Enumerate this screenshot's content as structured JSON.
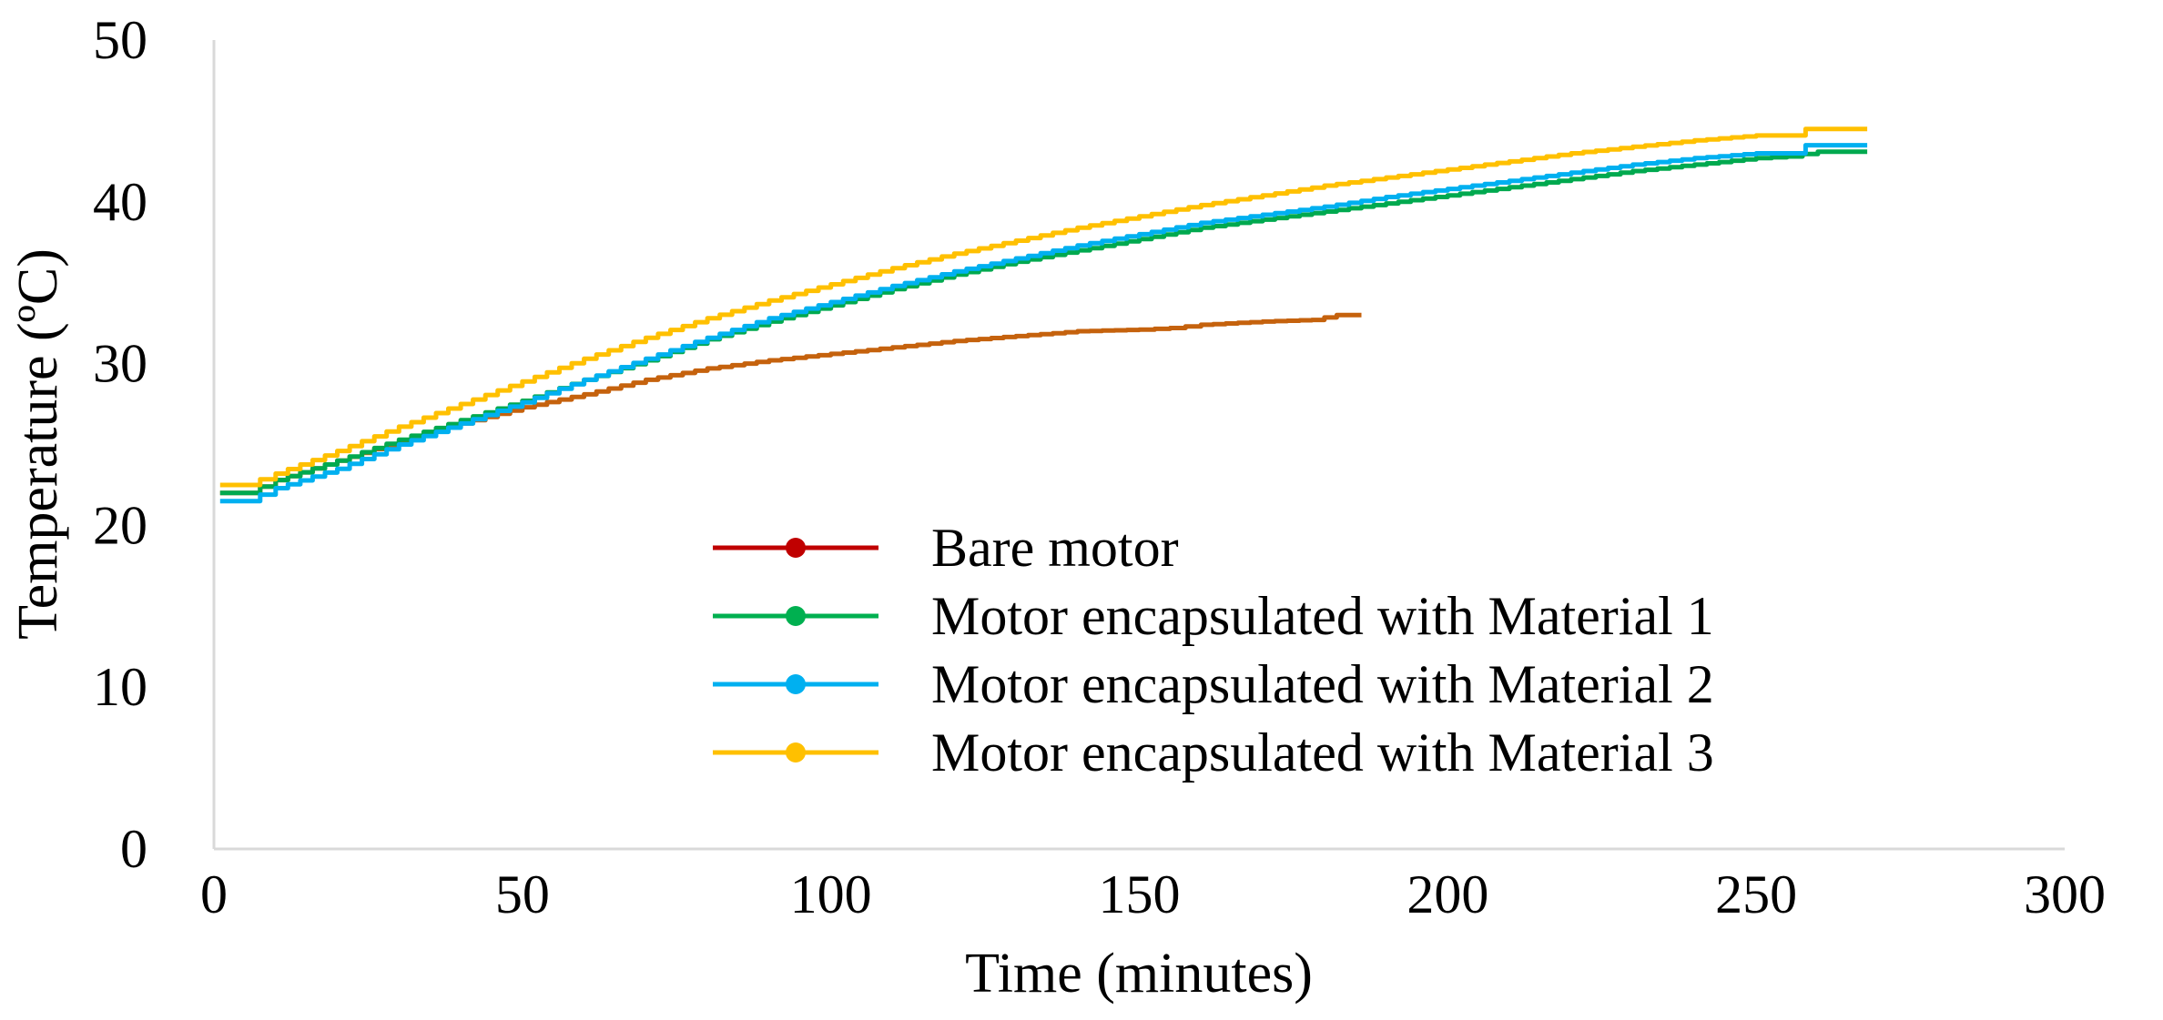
{
  "chart_data": {
    "type": "line",
    "title": "",
    "xlabel": "Time (minutes)",
    "ylabel": "Temperature (ºC)",
    "xlim": [
      0,
      300
    ],
    "ylim": [
      0,
      50
    ],
    "xticks": [
      0,
      50,
      100,
      150,
      200,
      250,
      300
    ],
    "yticks": [
      0,
      10,
      20,
      30,
      40,
      50
    ],
    "grid": false,
    "legend_position": "center-bottom",
    "series": [
      {
        "name": "Bare motor",
        "color": "#c5620d",
        "legend_color": "#c00000",
        "points": [
          [
            1,
            22
          ],
          [
            5,
            22
          ],
          [
            10,
            22.8
          ],
          [
            20,
            24
          ],
          [
            30,
            25.2
          ],
          [
            40,
            26.3
          ],
          [
            50,
            27.3
          ],
          [
            60,
            28.1
          ],
          [
            70,
            29
          ],
          [
            80,
            29.7
          ],
          [
            90,
            30.2
          ],
          [
            100,
            30.6
          ],
          [
            110,
            31
          ],
          [
            120,
            31.4
          ],
          [
            130,
            31.7
          ],
          [
            140,
            32
          ],
          [
            150,
            32.1
          ],
          [
            155,
            32.2
          ],
          [
            160,
            32.4
          ],
          [
            170,
            32.6
          ],
          [
            178,
            32.7
          ],
          [
            182,
            33
          ],
          [
            186,
            33
          ]
        ]
      },
      {
        "name": "Motor encapsulated with Material 1",
        "color": "#00a94f",
        "legend_color": "#00b050",
        "points": [
          [
            1,
            22
          ],
          [
            5,
            22
          ],
          [
            10,
            22.8
          ],
          [
            20,
            24
          ],
          [
            30,
            25.3
          ],
          [
            40,
            26.5
          ],
          [
            50,
            27.7
          ],
          [
            60,
            29
          ],
          [
            70,
            30.2
          ],
          [
            80,
            31.5
          ],
          [
            90,
            32.6
          ],
          [
            100,
            33.6
          ],
          [
            110,
            34.6
          ],
          [
            120,
            35.5
          ],
          [
            130,
            36.3
          ],
          [
            140,
            37
          ],
          [
            150,
            37.7
          ],
          [
            160,
            38.4
          ],
          [
            170,
            38.9
          ],
          [
            180,
            39.4
          ],
          [
            190,
            39.9
          ],
          [
            200,
            40.4
          ],
          [
            210,
            40.9
          ],
          [
            220,
            41.4
          ],
          [
            230,
            41.9
          ],
          [
            240,
            42.3
          ],
          [
            250,
            42.7
          ],
          [
            255,
            42.8
          ],
          [
            260,
            43.1
          ],
          [
            268,
            43.1
          ]
        ]
      },
      {
        "name": "Motor encapsulated with Material 2",
        "color": "#00b0f0",
        "legend_color": "#00b0f0",
        "points": [
          [
            1,
            21.5
          ],
          [
            5,
            21.5
          ],
          [
            10,
            22.3
          ],
          [
            20,
            23.5
          ],
          [
            30,
            25
          ],
          [
            40,
            26.3
          ],
          [
            50,
            27.6
          ],
          [
            60,
            29
          ],
          [
            70,
            30.3
          ],
          [
            80,
            31.6
          ],
          [
            90,
            32.8
          ],
          [
            100,
            33.8
          ],
          [
            110,
            34.8
          ],
          [
            120,
            35.7
          ],
          [
            130,
            36.5
          ],
          [
            140,
            37.3
          ],
          [
            150,
            38
          ],
          [
            160,
            38.7
          ],
          [
            170,
            39.2
          ],
          [
            180,
            39.7
          ],
          [
            190,
            40.3
          ],
          [
            200,
            40.8
          ],
          [
            210,
            41.3
          ],
          [
            220,
            41.8
          ],
          [
            230,
            42.3
          ],
          [
            240,
            42.7
          ],
          [
            250,
            43
          ],
          [
            255,
            43
          ],
          [
            258,
            43.5
          ],
          [
            268,
            43.5
          ]
        ]
      },
      {
        "name": "Motor encapsulated with Material 3",
        "color": "#ffc000",
        "legend_color": "#ffc000",
        "points": [
          [
            1,
            22.5
          ],
          [
            5,
            22.5
          ],
          [
            10,
            23.2
          ],
          [
            20,
            24.6
          ],
          [
            30,
            26.1
          ],
          [
            40,
            27.5
          ],
          [
            50,
            28.9
          ],
          [
            60,
            30.3
          ],
          [
            70,
            31.6
          ],
          [
            80,
            32.8
          ],
          [
            90,
            33.9
          ],
          [
            100,
            34.9
          ],
          [
            110,
            35.9
          ],
          [
            120,
            36.8
          ],
          [
            130,
            37.6
          ],
          [
            140,
            38.4
          ],
          [
            150,
            39.1
          ],
          [
            160,
            39.8
          ],
          [
            170,
            40.4
          ],
          [
            180,
            41
          ],
          [
            190,
            41.5
          ],
          [
            200,
            42
          ],
          [
            210,
            42.5
          ],
          [
            220,
            43
          ],
          [
            230,
            43.4
          ],
          [
            240,
            43.8
          ],
          [
            250,
            44.1
          ],
          [
            255,
            44.1
          ],
          [
            258,
            44.5
          ],
          [
            268,
            44.5
          ]
        ]
      }
    ]
  }
}
